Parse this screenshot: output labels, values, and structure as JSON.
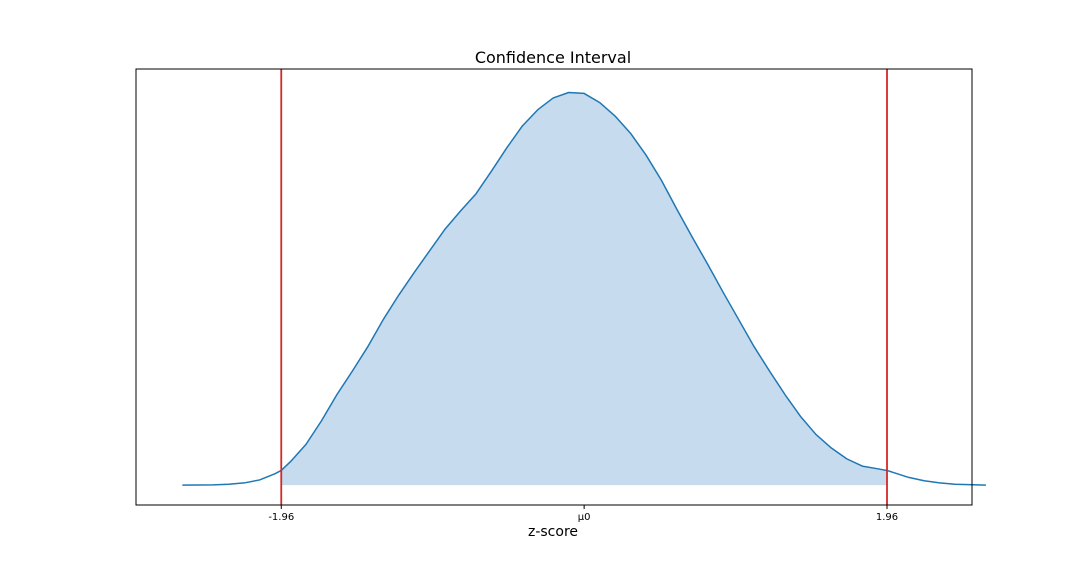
{
  "chart_data": {
    "type": "area",
    "title": "Confidence Interval",
    "xlabel": "z-score",
    "ylabel": "",
    "xlim": [
      -2.9,
      2.51
    ],
    "ylim": [
      -0.022,
      0.46
    ],
    "x_ticks": [
      {
        "value": -1.96,
        "label": "-1.96"
      },
      {
        "value": 0,
        "label": "μ0"
      },
      {
        "value": 1.96,
        "label": "1.96"
      }
    ],
    "y_ticks_visible": false,
    "grid": false,
    "series": [
      {
        "color": "#1f77b4",
        "x": [
          -2.6,
          -2.4,
          -2.3,
          -2.2,
          -2.1,
          -2.0,
          -1.96,
          -1.9,
          -1.8,
          -1.7,
          -1.6,
          -1.5,
          -1.4,
          -1.3,
          -1.2,
          -1.1,
          -1.0,
          -0.9,
          -0.8,
          -0.7,
          -0.6,
          -0.5,
          -0.4,
          -0.3,
          -0.2,
          -0.1,
          0.0,
          0.1,
          0.2,
          0.3,
          0.4,
          0.5,
          0.6,
          0.7,
          0.8,
          0.9,
          1.0,
          1.1,
          1.2,
          1.3,
          1.4,
          1.5,
          1.6,
          1.7,
          1.8,
          1.9,
          1.96,
          2.0,
          2.1,
          2.2,
          2.3,
          2.4,
          2.6
        ],
        "y": [
          0.0,
          0.0003,
          0.0009,
          0.0024,
          0.0057,
          0.0126,
          0.0162,
          0.026,
          0.045,
          0.071,
          0.1,
          0.126,
          0.153,
          0.183,
          0.21,
          0.235,
          0.259,
          0.283,
          0.303,
          0.322,
          0.347,
          0.373,
          0.397,
          0.415,
          0.428,
          0.434,
          0.433,
          0.423,
          0.408,
          0.389,
          0.365,
          0.337,
          0.305,
          0.274,
          0.244,
          0.213,
          0.183,
          0.153,
          0.126,
          0.1,
          0.076,
          0.056,
          0.041,
          0.029,
          0.021,
          0.018,
          0.0162,
          0.014,
          0.0085,
          0.0048,
          0.0024,
          0.0009,
          0.0
        ]
      }
    ],
    "shaded_region": {
      "from": -1.96,
      "to": 1.96,
      "color": "#c6dbed"
    },
    "vertical_lines": [
      {
        "x": -1.96,
        "color": "#d62728"
      },
      {
        "x": 1.96,
        "color": "#d62728"
      }
    ]
  }
}
